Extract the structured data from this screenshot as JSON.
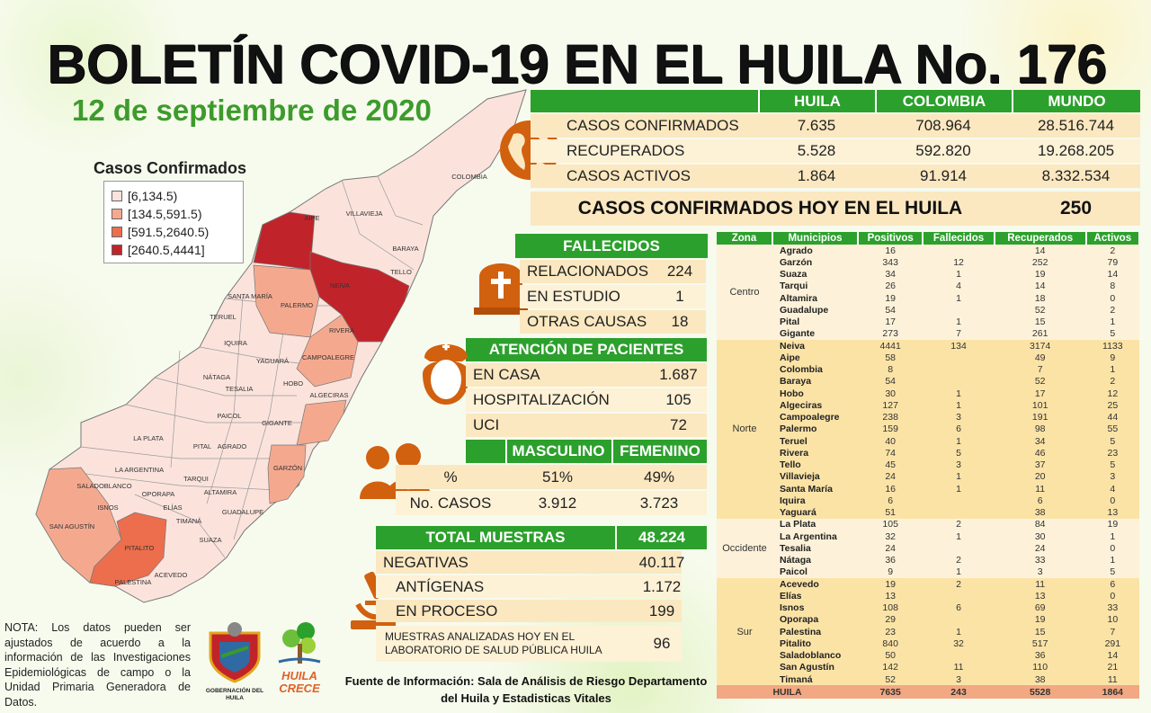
{
  "title": "BOLETÍN COVID-19 EN EL HUILA No. 176",
  "date": "12 de septiembre de 2020",
  "summary": {
    "headers": [
      "HUILA",
      "COLOMBIA",
      "MUNDO"
    ],
    "rows": [
      {
        "label": "CASOS CONFIRMADOS",
        "values": [
          "7.635",
          "708.964",
          "28.516.744"
        ]
      },
      {
        "label": "RECUPERADOS",
        "values": [
          "5.528",
          "592.820",
          "19.268.205"
        ]
      },
      {
        "label": "CASOS ACTIVOS",
        "values": [
          "1.864",
          "91.914",
          "8.332.534"
        ]
      }
    ],
    "today_label": "CASOS CONFIRMADOS  HOY EN EL HUILA",
    "today_value": "250",
    "icon": "globe-icon"
  },
  "fallecidos": {
    "title": "FALLECIDOS",
    "icon": "tombstone-icon",
    "rows": [
      {
        "label": "RELACIONADOS",
        "value": "224"
      },
      {
        "label": "EN ESTUDIO",
        "value": "1"
      },
      {
        "label": "OTRAS CAUSAS",
        "value": "18"
      }
    ]
  },
  "atencion": {
    "title": "ATENCIÓN DE PACIENTES",
    "icon": "nurse-icon",
    "rows": [
      {
        "label": "EN CASA",
        "value": "1.687"
      },
      {
        "label": "HOSPITALIZACIÓN",
        "value": "105"
      },
      {
        "label": "UCI",
        "value": "72"
      }
    ]
  },
  "genero": {
    "icon": "people-icon",
    "headers": [
      "MASCULINO",
      "FEMENINO"
    ],
    "rows": [
      {
        "label": "%",
        "values": [
          "51%",
          "49%"
        ]
      },
      {
        "label": "No. CASOS",
        "values": [
          "3.912",
          "3.723"
        ]
      }
    ]
  },
  "muestras": {
    "title": "TOTAL MUESTRAS",
    "total": "48.224",
    "icon": "microscope-icon",
    "rows": [
      {
        "label": "NEGATIVAS",
        "value": "40.117"
      },
      {
        "label": "ANTÍGENAS",
        "value": "1.172"
      },
      {
        "label": "EN PROCESO",
        "value": "199"
      },
      {
        "label": "MUESTRAS ANALIZADAS HOY  EN EL LABORATORIO  DE SALUD PÚBLICA HUILA",
        "value": "96"
      }
    ]
  },
  "legend": {
    "title": "Casos Confirmados",
    "items": [
      {
        "label": "[6,134.5)",
        "color": "#fbe3dc"
      },
      {
        "label": "[134.5,591.5)",
        "color": "#f4a98f"
      },
      {
        "label": "[591.5,2640.5)",
        "color": "#ec6e4c"
      },
      {
        "label": "[2640.5,4441]",
        "color": "#c0242a"
      }
    ]
  },
  "map": {
    "labels": [
      "COLOMBIA",
      "AIPE",
      "VILLAVIEJA",
      "BARAYA",
      "TELLO",
      "NEIVA",
      "SANTA MARÍA",
      "PALERMO",
      "RIVERA",
      "TERUEL",
      "IQUIRA",
      "YAGUARÁ",
      "CAMPOALEGRE",
      "NÁTAGA",
      "TESALIA",
      "HOBO",
      "ALGECIRAS",
      "PAICOL",
      "GIGANTE",
      "LA PLATA",
      "PITAL",
      "AGRADO",
      "LA ARGENTINA",
      "TARQUI",
      "GARZÓN",
      "SALADOBLANCO",
      "OPORAPA",
      "ALTAMIRA",
      "ISNOS",
      "ELÍAS",
      "TIMANÁ",
      "GUADALUPE",
      "SAN AGUSTÍN",
      "PITALITO",
      "SUAZA",
      "ACEVEDO",
      "PALESTINA"
    ]
  },
  "municipios": {
    "headers": [
      "Zona",
      "Municipios",
      "Positivos",
      "Fallecidos",
      "Recuperados",
      "Activos"
    ],
    "zones": [
      {
        "name": "Centro",
        "rows": [
          [
            "Agrado",
            "16",
            "",
            "14",
            "2"
          ],
          [
            "Garzón",
            "343",
            "12",
            "252",
            "79"
          ],
          [
            "Suaza",
            "34",
            "1",
            "19",
            "14"
          ],
          [
            "Tarqui",
            "26",
            "4",
            "14",
            "8"
          ],
          [
            "Altamira",
            "19",
            "1",
            "18",
            "0"
          ],
          [
            "Guadalupe",
            "54",
            "",
            "52",
            "2"
          ],
          [
            "Pital",
            "17",
            "1",
            "15",
            "1"
          ],
          [
            "Gigante",
            "273",
            "7",
            "261",
            "5"
          ]
        ]
      },
      {
        "name": "Norte",
        "rows": [
          [
            "Neiva",
            "4441",
            "134",
            "3174",
            "1133"
          ],
          [
            "Aipe",
            "58",
            "",
            "49",
            "9"
          ],
          [
            "Colombia",
            "8",
            "",
            "7",
            "1"
          ],
          [
            "Baraya",
            "54",
            "",
            "52",
            "2"
          ],
          [
            "Hobo",
            "30",
            "1",
            "17",
            "12"
          ],
          [
            "Algeciras",
            "127",
            "1",
            "101",
            "25"
          ],
          [
            "Campoalegre",
            "238",
            "3",
            "191",
            "44"
          ],
          [
            "Palermo",
            "159",
            "6",
            "98",
            "55"
          ],
          [
            "Teruel",
            "40",
            "1",
            "34",
            "5"
          ],
          [
            "Rivera",
            "74",
            "5",
            "46",
            "23"
          ],
          [
            "Tello",
            "45",
            "3",
            "37",
            "5"
          ],
          [
            "Villavieja",
            "24",
            "1",
            "20",
            "3"
          ],
          [
            "Santa María",
            "16",
            "1",
            "11",
            "4"
          ],
          [
            "Iquira",
            "6",
            "",
            "6",
            "0"
          ],
          [
            "Yaguará",
            "51",
            "",
            "38",
            "13"
          ]
        ]
      },
      {
        "name": "Occidente",
        "rows": [
          [
            "La Plata",
            "105",
            "2",
            "84",
            "19"
          ],
          [
            "La Argentina",
            "32",
            "1",
            "30",
            "1"
          ],
          [
            "Tesalia",
            "24",
            "",
            "24",
            "0"
          ],
          [
            "Nátaga",
            "36",
            "2",
            "33",
            "1"
          ],
          [
            "Paicol",
            "9",
            "1",
            "3",
            "5"
          ]
        ]
      },
      {
        "name": "Sur",
        "rows": [
          [
            "Acevedo",
            "19",
            "2",
            "11",
            "6"
          ],
          [
            "Elías",
            "13",
            "",
            "13",
            "0"
          ],
          [
            "Isnos",
            "108",
            "6",
            "69",
            "33"
          ],
          [
            "Oporapa",
            "29",
            "",
            "19",
            "10"
          ],
          [
            "Palestina",
            "23",
            "1",
            "15",
            "7"
          ],
          [
            "Pitalito",
            "840",
            "32",
            "517",
            "291"
          ],
          [
            "Saladoblanco",
            "50",
            "",
            "36",
            "14"
          ],
          [
            "San Agustín",
            "142",
            "11",
            "110",
            "21"
          ],
          [
            "Timaná",
            "52",
            "3",
            "38",
            "11"
          ]
        ]
      }
    ],
    "total": [
      "HUILA",
      "7635",
      "243",
      "5528",
      "1864"
    ]
  },
  "note": "NOTA: Los datos pueden ser ajustados de acuerdo a la información de las Investigaciones Epidemiológicas de campo o la Unidad Primaria Generadora de Datos.",
  "logos": {
    "gobernacion": "GOBERNACIÓN DEL HUILA",
    "huila_crece": "HUILA CRECE"
  },
  "source": "Fuente de Información:  Sala de Análisis de Riesgo Departamento del Huila y Estadisticas  Vitales"
}
